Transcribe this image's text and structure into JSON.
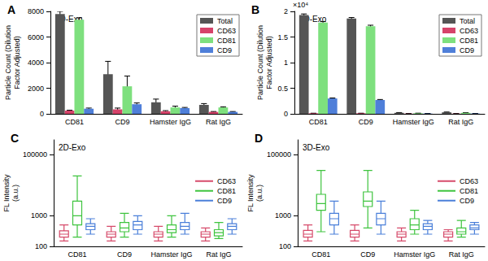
{
  "chart_data": [
    {
      "type": "bar",
      "title": "A",
      "annotations": [
        "2D-Exo"
      ],
      "ylabel": "Particle Count (Dilution\nFactor Adjusted)",
      "categories": [
        "CD81",
        "CD9",
        "Hamster IgG",
        "Rat IgG"
      ],
      "series": [
        {
          "name": "Total",
          "color": "#555555",
          "values": [
            7800,
            3100,
            900,
            700
          ],
          "errors": [
            200,
            1000,
            250,
            100
          ]
        },
        {
          "name": "CD63",
          "color": "#d6436a",
          "values": [
            250,
            350,
            200,
            150
          ],
          "errors": [
            30,
            100,
            50,
            30
          ]
        },
        {
          "name": "CD81",
          "color": "#7ee07e",
          "values": [
            7350,
            2150,
            500,
            500
          ],
          "errors": [
            150,
            800,
            100,
            50
          ]
        },
        {
          "name": "CD9",
          "color": "#4f7fd9",
          "values": [
            400,
            750,
            450,
            150
          ],
          "errors": [
            50,
            100,
            50,
            30
          ]
        }
      ],
      "ylim": [
        0,
        8000
      ],
      "yticks": [
        0,
        2000,
        4000,
        6000,
        8000
      ],
      "grid": false,
      "legend": "upper right"
    },
    {
      "type": "bar",
      "title": "B",
      "annotations": [
        "3D-Exo",
        "×10⁴"
      ],
      "ylabel": "Particle Count (Dilution\nFactor Adjusted)",
      "categories": [
        "CD81",
        "CD9",
        "Hamster IgG",
        "Rat IgG"
      ],
      "series": [
        {
          "name": "Total",
          "color": "#555555",
          "values": [
            1.93,
            1.86,
            0.02,
            0.03
          ],
          "errors": [
            0.02,
            0.02,
            0.005,
            0.005
          ]
        },
        {
          "name": "CD63",
          "color": "#d6436a",
          "values": [
            0.01,
            0.01,
            0.003,
            0.003
          ],
          "errors": [
            0.002,
            0.002,
            0.001,
            0.001
          ]
        },
        {
          "name": "CD81",
          "color": "#7ee07e",
          "values": [
            1.78,
            1.71,
            0.01,
            0.02
          ],
          "errors": [
            0.02,
            0.02,
            0.003,
            0.003
          ]
        },
        {
          "name": "CD9",
          "color": "#4f7fd9",
          "values": [
            0.3,
            0.27,
            0.005,
            0.005
          ],
          "errors": [
            0.01,
            0.01,
            0.002,
            0.002
          ]
        }
      ],
      "ylim": [
        0,
        2
      ],
      "yticks": [
        0,
        0.5,
        1,
        1.5,
        2
      ],
      "grid": false,
      "legend": "upper right"
    },
    {
      "type": "boxplot",
      "title": "C",
      "annotations": [
        "2D-Exo"
      ],
      "ylabel": "FL Intensity\n(a.u.)",
      "categories": [
        "CD81",
        "CD9",
        "Hamster IgG",
        "Rat IgG"
      ],
      "series": [
        {
          "name": "CD63",
          "color": "#d64a6a",
          "values": [
            [
              150,
              200,
              250,
              320,
              500
            ],
            [
              150,
              200,
              250,
              300,
              450
            ],
            [
              150,
              200,
              250,
              300,
              450
            ],
            [
              150,
              200,
              250,
              300,
              400
            ]
          ]
        },
        {
          "name": "CD81",
          "color": "#3ec43e",
          "values": [
            [
              200,
              500,
              1000,
              3000,
              20000
            ],
            [
              200,
              300,
              400,
              600,
              1200
            ],
            [
              200,
              280,
              350,
              500,
              1000
            ],
            [
              180,
              220,
              280,
              350,
              600
            ]
          ]
        },
        {
          "name": "CD9",
          "color": "#4a7fd9",
          "values": [
            [
              250,
              350,
              450,
              550,
              800
            ],
            [
              250,
              350,
              500,
              650,
              1000
            ],
            [
              250,
              350,
              450,
              600,
              1200
            ],
            [
              250,
              350,
              450,
              550,
              800
            ]
          ]
        }
      ],
      "log": "y",
      "ylim": [
        100,
        300000
      ],
      "yticks": [
        100,
        1000,
        100000
      ],
      "grid": false,
      "legend": "right"
    },
    {
      "type": "boxplot",
      "title": "D",
      "annotations": [
        "3D-Exo"
      ],
      "ylabel": "FL Intensity\n(a.u.)",
      "categories": [
        "CD81",
        "CD9",
        "Hamster IgG",
        "Rat IgG"
      ],
      "series": [
        {
          "name": "CD63",
          "color": "#d64a6a",
          "values": [
            [
              150,
              200,
              250,
              330,
              500
            ],
            [
              150,
              200,
              250,
              330,
              500
            ],
            [
              150,
              200,
              250,
              300,
              400
            ],
            [
              150,
              200,
              250,
              300,
              350
            ]
          ]
        },
        {
          "name": "CD81",
          "color": "#3ec43e",
          "values": [
            [
              300,
              1500,
              2500,
              5000,
              30000
            ],
            [
              400,
              2000,
              3000,
              6000,
              30000
            ],
            [
              250,
              350,
              500,
              800,
              1500
            ],
            [
              200,
              250,
              300,
              400,
              700
            ]
          ]
        },
        {
          "name": "CD9",
          "color": "#4a7fd9",
          "values": [
            [
              250,
              500,
              800,
              1200,
              3000
            ],
            [
              250,
              500,
              800,
              1200,
              3000
            ],
            [
              250,
              350,
              450,
              550,
              700
            ],
            [
              250,
              350,
              400,
              500,
              600
            ]
          ]
        }
      ],
      "log": "y",
      "ylim": [
        100,
        300000
      ],
      "yticks": [
        100,
        1000,
        100000
      ],
      "grid": false,
      "legend": "right"
    }
  ]
}
